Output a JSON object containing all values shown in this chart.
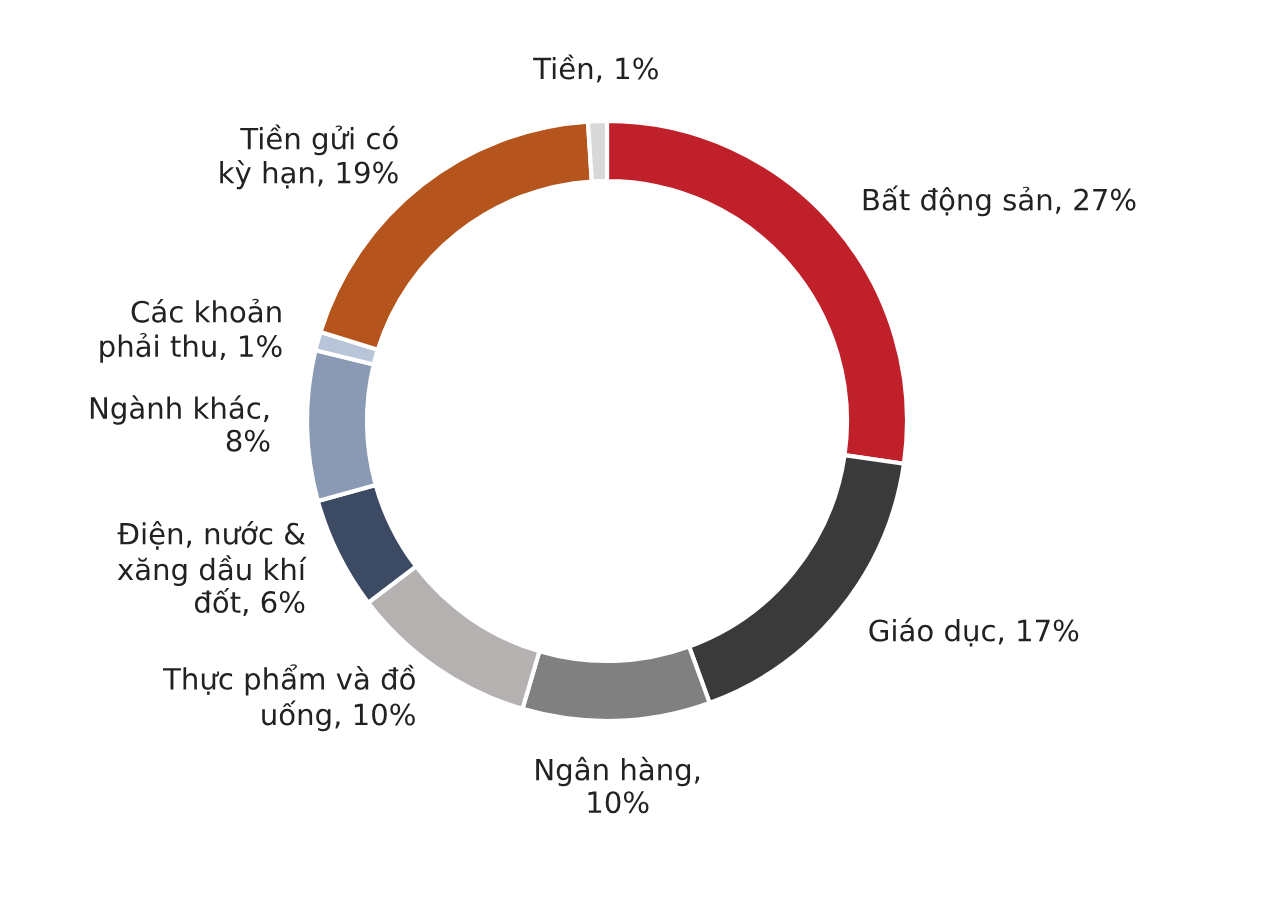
{
  "chart_data": {
    "type": "donut",
    "categories": [
      "Bất động sản, 27%",
      "Giáo dục, 17%",
      "Ngân hàng,\n10%",
      "Thực phẩm và đồ\nuống, 10%",
      "Điện, nước &\nxăng dầu khí\nđốt, 6%",
      "Ngành khác,\n8%",
      "Các khoản\nphải thu, 1%",
      "Tiền gửi có\nkỳ hạn, 19%",
      "Tiền, 1%"
    ],
    "values": [
      27,
      17,
      10,
      10,
      6,
      8,
      1,
      19,
      1
    ],
    "colors": [
      "#c0202a",
      "#3a3a3a",
      "#808080",
      "#b5b1b1",
      "#3d4a63",
      "#8a9ab4",
      "#b8c4d8",
      "#b5541c",
      "#d8d8d8"
    ]
  }
}
